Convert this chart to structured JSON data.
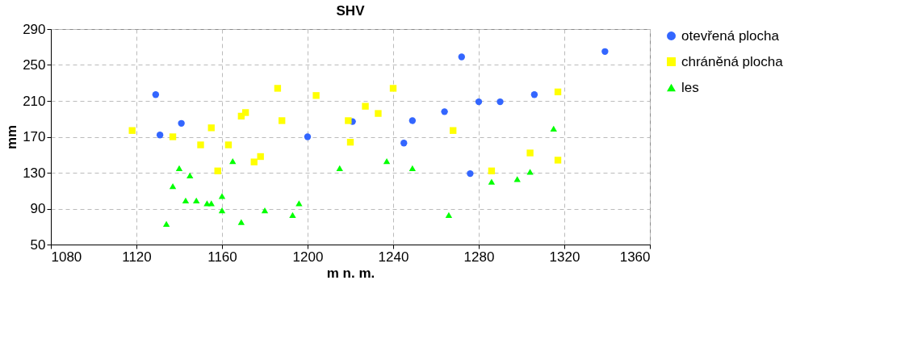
{
  "chart_data": {
    "type": "scatter",
    "title": "SHV",
    "xlabel": "m n. m.",
    "ylabel": "mm",
    "xlim": [
      1080,
      1360
    ],
    "xticks": [
      1080,
      1120,
      1160,
      1200,
      1240,
      1280,
      1320,
      1360
    ],
    "ylim": [
      50,
      290
    ],
    "yticks": [
      50,
      90,
      130,
      170,
      210,
      250,
      290
    ],
    "grid": true,
    "legend": "right",
    "series": [
      {
        "name": "otevřená plocha",
        "color": "#3366ff",
        "marker": "circle",
        "x": [
          1129,
          1131,
          1141,
          1200,
          1221,
          1249,
          1245,
          1264,
          1272,
          1276,
          1280,
          1290,
          1306,
          1339
        ],
        "values": [
          217,
          172,
          185,
          170,
          187,
          188,
          163,
          198,
          259,
          129,
          209,
          209,
          217,
          265
        ]
      },
      {
        "name": "chráněná plocha",
        "color": "#ffff00",
        "marker": "square",
        "x": [
          1118,
          1137,
          1150,
          1155,
          1158,
          1163,
          1175,
          1178,
          1169,
          1171,
          1186,
          1188,
          1204,
          1219,
          1220,
          1227,
          1233,
          1240,
          1268,
          1286,
          1304,
          1317,
          1317
        ],
        "values": [
          177,
          170,
          161,
          180,
          132,
          161,
          142,
          148,
          193,
          197,
          224,
          188,
          216,
          188,
          164,
          204,
          196,
          224,
          177,
          132,
          152,
          144,
          220
        ]
      },
      {
        "name": "les",
        "color": "#00ff00",
        "marker": "triangle",
        "x": [
          1134,
          1137,
          1140,
          1143,
          1145,
          1148,
          1153,
          1155,
          1160,
          1160,
          1165,
          1169,
          1180,
          1193,
          1196,
          1215,
          1237,
          1249,
          1266,
          1286,
          1298,
          1304,
          1315
        ],
        "values": [
          73,
          115,
          135,
          99,
          127,
          99,
          96,
          96,
          104,
          88,
          143,
          75,
          88,
          83,
          96,
          135,
          143,
          135,
          83,
          120,
          123,
          131,
          179
        ]
      }
    ]
  }
}
